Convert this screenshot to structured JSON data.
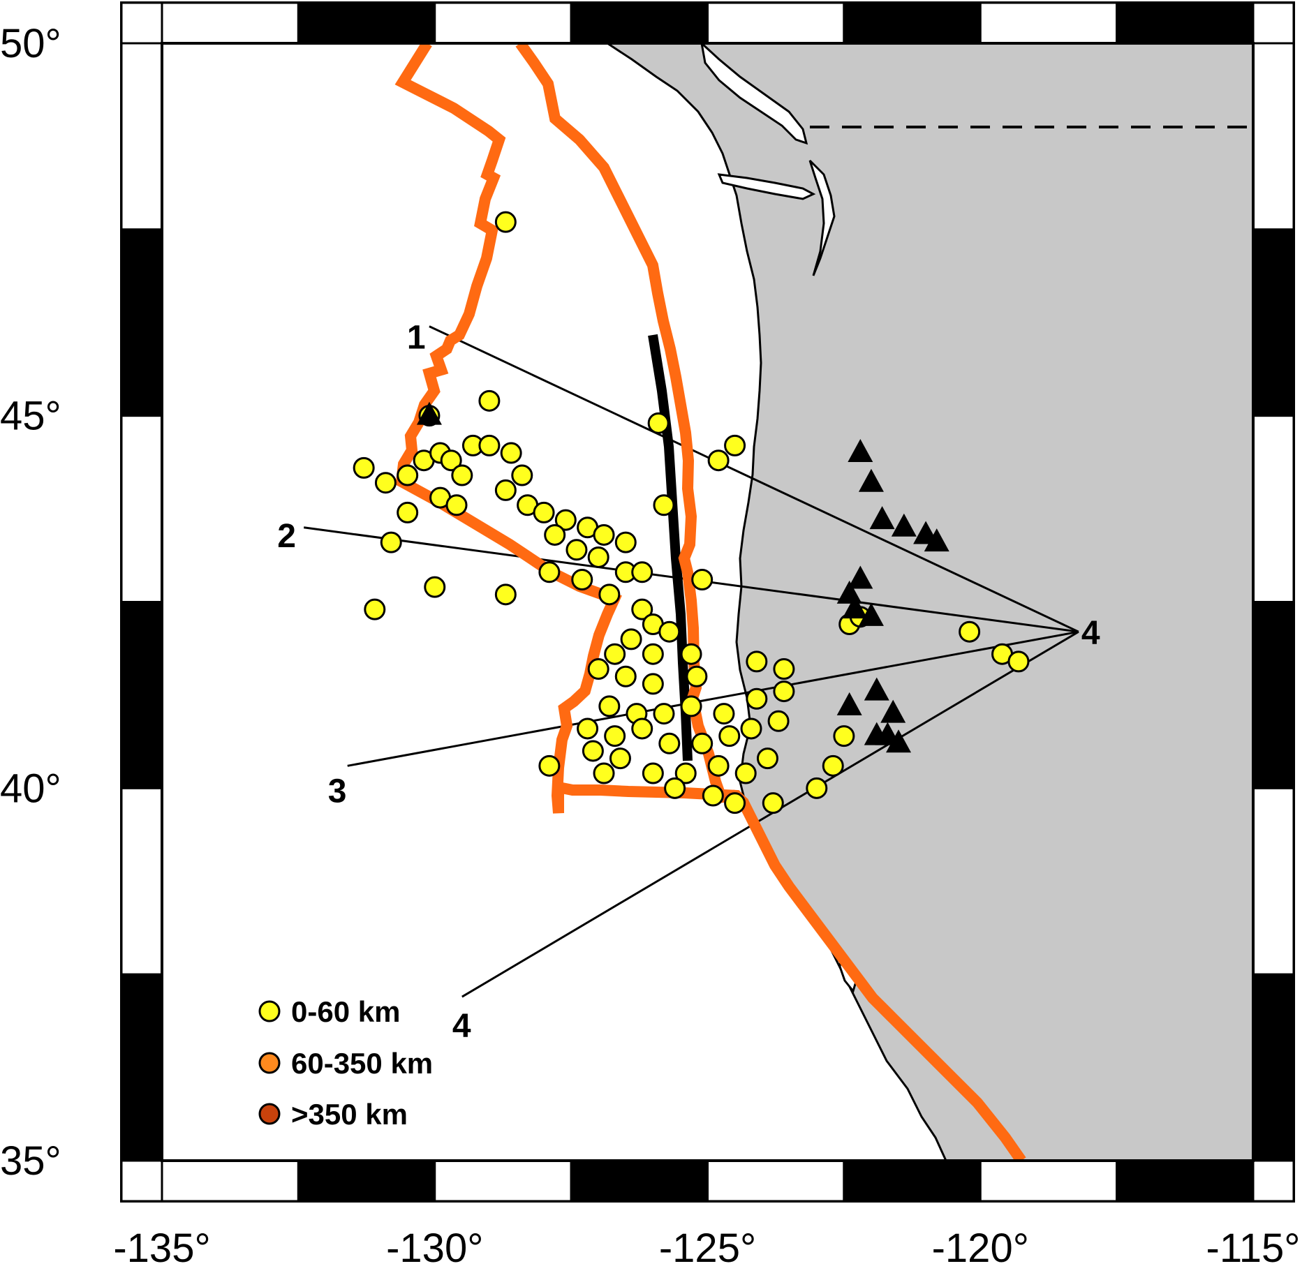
{
  "map": {
    "lon_range": [
      -135,
      -115
    ],
    "lat_range": [
      35,
      50
    ],
    "frame_style": "alternating black/white border",
    "x_tick_labels": [
      {
        "lon": -135,
        "label": "-135°"
      },
      {
        "lon": -130,
        "label": "-130°"
      },
      {
        "lon": -125,
        "label": "-125°"
      },
      {
        "lon": -120,
        "label": "-120°"
      },
      {
        "lon": -115,
        "label": "-115°"
      }
    ],
    "y_tick_labels": [
      {
        "lat": 50,
        "label": "50°"
      },
      {
        "lat": 45,
        "label": "45°"
      },
      {
        "lat": 40,
        "label": "40°"
      },
      {
        "lat": 35,
        "label": "35°"
      }
    ],
    "colors": {
      "land": "#c8c8c8",
      "ocean": "#ffffff",
      "plate_boundary": "#ff6a12",
      "earthquake_shallow": "#ffff1e",
      "earthquake_intermediate": "#ff8a1e",
      "earthquake_deep": "#c8420c",
      "stations": "#000000"
    }
  },
  "legend": {
    "items": [
      {
        "label": "0-60 km",
        "color": "#ffff1e"
      },
      {
        "label": "60-350 km",
        "color": "#ff8a1e"
      },
      {
        "label": ">350 km",
        "color": "#c8420c"
      }
    ]
  },
  "profiles": [
    {
      "id": "1",
      "label": "1",
      "start": [
        -130.1,
        46.2
      ],
      "end": [
        -118.2,
        42.1
      ]
    },
    {
      "id": "2",
      "label": "2",
      "start": [
        -132.4,
        43.5
      ],
      "end": [
        -118.2,
        42.1
      ]
    },
    {
      "id": "3",
      "label": "3",
      "start": [
        -131.6,
        40.3
      ],
      "end": [
        -118.2,
        42.1
      ]
    },
    {
      "id": "4",
      "label": "4",
      "start": [
        -129.5,
        37.2
      ],
      "end": [
        -118.2,
        42.1
      ]
    }
  ],
  "profile_endpoint_label": "4",
  "earthquakes_shallow": [
    [
      -128.7,
      47.6
    ],
    [
      -129.0,
      45.2
    ],
    [
      -130.1,
      45.0
    ],
    [
      -131.3,
      44.3
    ],
    [
      -130.9,
      44.1
    ],
    [
      -130.5,
      44.2
    ],
    [
      -130.2,
      44.4
    ],
    [
      -129.9,
      44.5
    ],
    [
      -129.7,
      44.4
    ],
    [
      -129.5,
      44.2
    ],
    [
      -129.3,
      44.6
    ],
    [
      -129.0,
      44.6
    ],
    [
      -128.6,
      44.5
    ],
    [
      -128.4,
      44.2
    ],
    [
      -128.7,
      44.0
    ],
    [
      -128.3,
      43.8
    ],
    [
      -129.9,
      43.9
    ],
    [
      -129.6,
      43.8
    ],
    [
      -128.0,
      43.7
    ],
    [
      -127.6,
      43.6
    ],
    [
      -127.2,
      43.5
    ],
    [
      -126.9,
      43.4
    ],
    [
      -126.5,
      43.3
    ],
    [
      -127.8,
      43.4
    ],
    [
      -127.4,
      43.2
    ],
    [
      -127.0,
      43.1
    ],
    [
      -126.5,
      42.9
    ],
    [
      -126.2,
      42.9
    ],
    [
      -127.3,
      42.8
    ],
    [
      -127.9,
      42.9
    ],
    [
      -130.5,
      43.7
    ],
    [
      -130.8,
      43.3
    ],
    [
      -130.0,
      42.7
    ],
    [
      -131.1,
      42.4
    ],
    [
      -128.7,
      42.6
    ],
    [
      -126.8,
      42.6
    ],
    [
      -126.2,
      42.4
    ],
    [
      -126.0,
      42.2
    ],
    [
      -125.7,
      42.1
    ],
    [
      -126.4,
      42.0
    ],
    [
      -126.7,
      41.8
    ],
    [
      -126.0,
      41.8
    ],
    [
      -125.3,
      41.8
    ],
    [
      -127.0,
      41.6
    ],
    [
      -126.5,
      41.5
    ],
    [
      -126.0,
      41.4
    ],
    [
      -125.2,
      41.5
    ],
    [
      -126.8,
      41.1
    ],
    [
      -126.3,
      41.0
    ],
    [
      -125.8,
      41.0
    ],
    [
      -125.3,
      41.1
    ],
    [
      -124.7,
      41.0
    ],
    [
      -124.1,
      41.2
    ],
    [
      -123.6,
      41.3
    ],
    [
      -124.1,
      41.7
    ],
    [
      -123.6,
      41.6
    ],
    [
      -127.2,
      40.8
    ],
    [
      -126.7,
      40.7
    ],
    [
      -126.2,
      40.8
    ],
    [
      -125.7,
      40.6
    ],
    [
      -125.1,
      40.6
    ],
    [
      -124.6,
      40.7
    ],
    [
      -124.2,
      40.8
    ],
    [
      -123.7,
      40.9
    ],
    [
      -127.1,
      40.5
    ],
    [
      -126.6,
      40.4
    ],
    [
      -126.0,
      40.2
    ],
    [
      -125.4,
      40.2
    ],
    [
      -124.8,
      40.3
    ],
    [
      -124.3,
      40.2
    ],
    [
      -123.9,
      40.4
    ],
    [
      -127.9,
      40.3
    ],
    [
      -126.9,
      40.2
    ],
    [
      -125.6,
      40.0
    ],
    [
      -124.9,
      39.9
    ],
    [
      -124.5,
      39.8
    ],
    [
      -123.8,
      39.8
    ],
    [
      -123.0,
      40.0
    ],
    [
      -122.7,
      40.3
    ],
    [
      -122.5,
      40.7
    ],
    [
      -122.4,
      42.2
    ],
    [
      -122.2,
      42.3
    ],
    [
      -120.2,
      42.1
    ],
    [
      -119.6,
      41.8
    ],
    [
      -119.3,
      41.7
    ],
    [
      -125.9,
      44.9
    ],
    [
      -124.5,
      44.6
    ],
    [
      -124.8,
      44.4
    ],
    [
      -125.8,
      43.8
    ],
    [
      -125.1,
      42.8
    ]
  ],
  "stations": [
    [
      -130.1,
      45.0
    ],
    [
      -122.2,
      44.5
    ],
    [
      -122.0,
      44.1
    ],
    [
      -121.8,
      43.6
    ],
    [
      -121.4,
      43.5
    ],
    [
      -121.0,
      43.4
    ],
    [
      -120.8,
      43.3
    ],
    [
      -122.4,
      42.6
    ],
    [
      -122.2,
      42.8
    ],
    [
      -122.3,
      42.4
    ],
    [
      -122.0,
      42.3
    ],
    [
      -122.4,
      41.1
    ],
    [
      -121.9,
      41.3
    ],
    [
      -121.6,
      41.0
    ],
    [
      -121.7,
      40.7
    ],
    [
      -121.5,
      40.6
    ],
    [
      -121.9,
      40.7
    ]
  ]
}
